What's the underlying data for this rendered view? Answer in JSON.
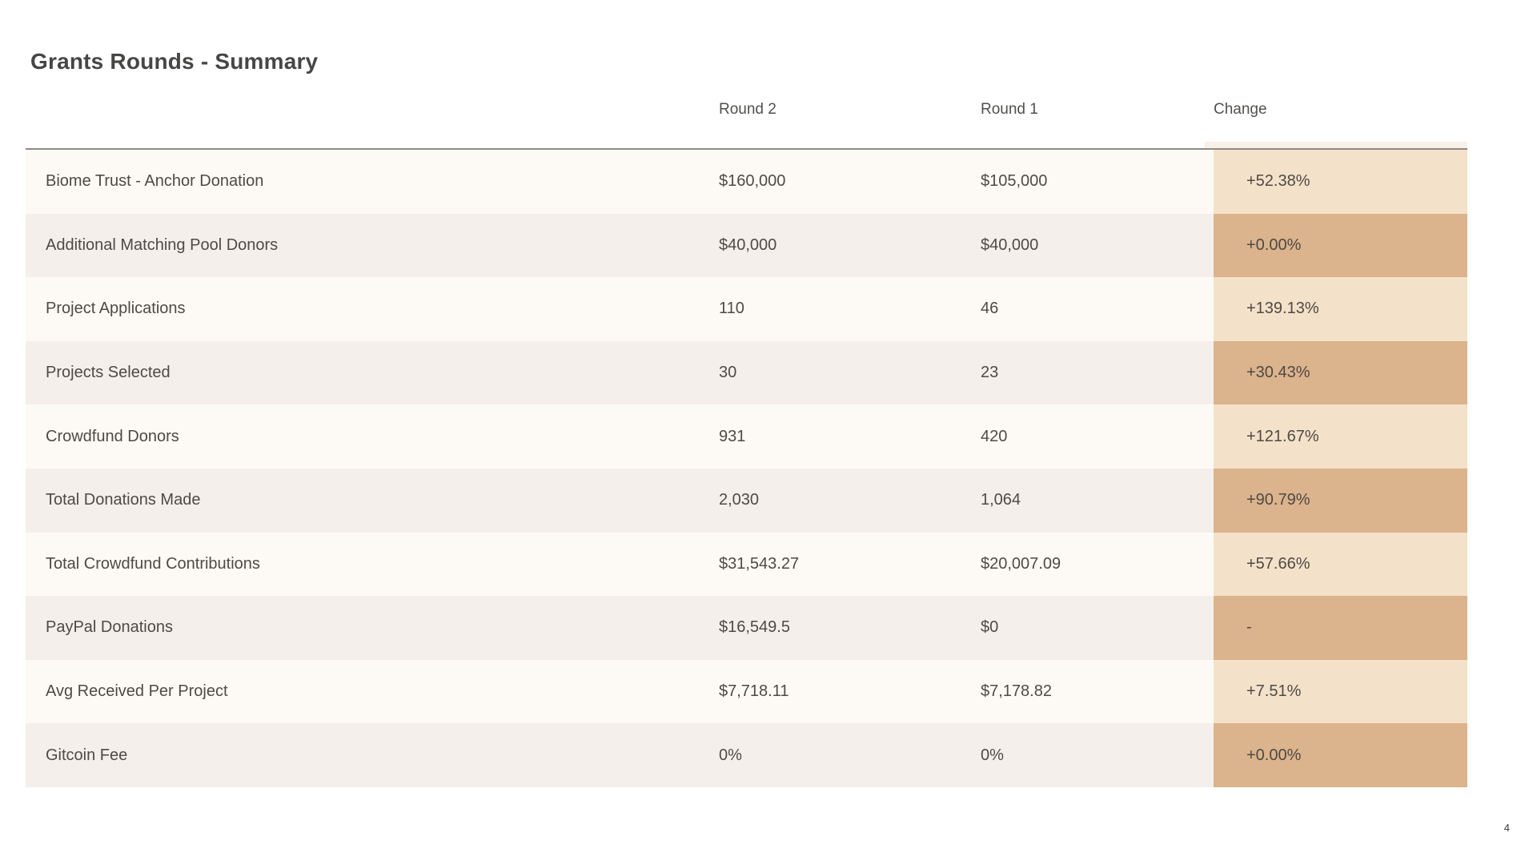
{
  "slide": {
    "page_number": "4"
  },
  "chart_data": {
    "type": "table",
    "title": "Grants Rounds - Summary",
    "columns": [
      "",
      "Round 2",
      "Round 1",
      "Change"
    ],
    "rows": [
      [
        "Biome Trust - Anchor Donation",
        "$160,000",
        "$105,000",
        "+52.38%"
      ],
      [
        "Additional Matching Pool Donors",
        "$40,000",
        "$40,000",
        "+0.00%"
      ],
      [
        "Project Applications",
        "110",
        "46",
        "+139.13%"
      ],
      [
        "Projects Selected",
        "30",
        "23",
        "+30.43%"
      ],
      [
        "Crowdfund Donors",
        "931",
        "420",
        "+121.67%"
      ],
      [
        "Total Donations Made",
        "2,030",
        "1,064",
        "+90.79%"
      ],
      [
        "Total Crowdfund Contributions",
        "$31,543.27",
        "$20,007.09",
        "+57.66%"
      ],
      [
        "PayPal Donations",
        "$16,549.5",
        "$0",
        "-"
      ],
      [
        "Avg Received Per Project",
        "$7,718.11",
        "$7,178.82",
        "+7.51%"
      ],
      [
        "Gitcoin Fee",
        "0%",
        "0%",
        "+0.00%"
      ]
    ],
    "layout": {
      "row_striping": true,
      "change_column_highlighted": true,
      "header_rule": true
    }
  },
  "colors": {
    "page_background": "#ffffff",
    "row_stripe_light": "#fdfaf5",
    "row_stripe_dark": "#f4efeb",
    "change_cell_light": "#f4e1c9",
    "change_cell_dark": "#dbb38c",
    "header_rule": "#8b8b8b",
    "text": "#4e4a45"
  }
}
